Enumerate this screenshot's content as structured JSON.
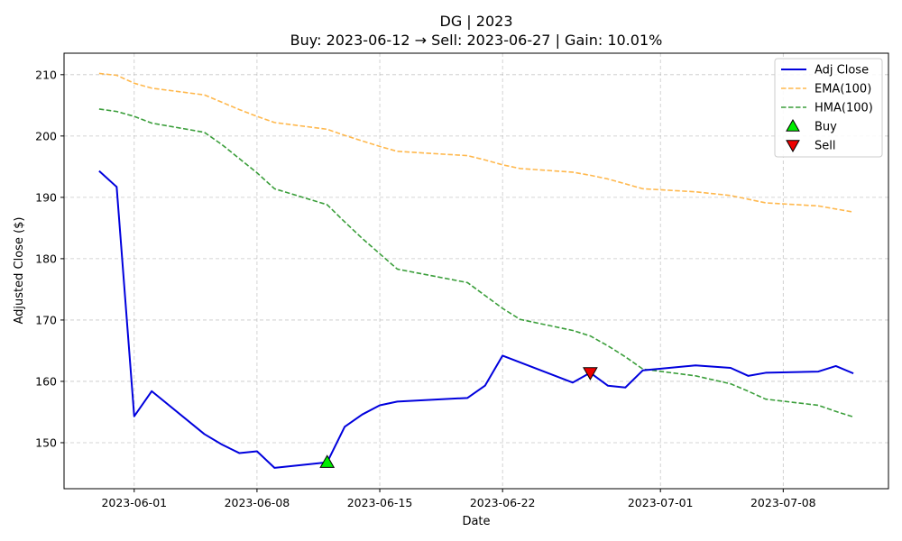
{
  "chart_data": {
    "type": "line",
    "title": "DG | 2023",
    "subtitle": "Buy: 2023-06-12  →  Sell: 2023-06-27  |  Gain: 10.01%",
    "xlabel": "Date",
    "ylabel": "Adjusted Close ($)",
    "xlim": [
      "2023-05-28",
      "2023-07-14"
    ],
    "ylim": [
      142.5,
      213.5
    ],
    "x_ticks": [
      "2023-06-01",
      "2023-06-08",
      "2023-06-15",
      "2023-06-22",
      "2023-07-01",
      "2023-07-08"
    ],
    "y_ticks": [
      150,
      160,
      170,
      180,
      190,
      200,
      210
    ],
    "grid": true,
    "legend_position": "top-right",
    "series": [
      {
        "name": "Adj Close",
        "color": "#0000dd",
        "style": "solid",
        "x": [
          "2023-05-30",
          "2023-05-31",
          "2023-06-01",
          "2023-06-02",
          "2023-06-05",
          "2023-06-06",
          "2023-06-07",
          "2023-06-08",
          "2023-06-09",
          "2023-06-12",
          "2023-06-13",
          "2023-06-14",
          "2023-06-15",
          "2023-06-16",
          "2023-06-20",
          "2023-06-21",
          "2023-06-22",
          "2023-06-26",
          "2023-06-27",
          "2023-06-28",
          "2023-06-29",
          "2023-06-30",
          "2023-07-03",
          "2023-07-05",
          "2023-07-06",
          "2023-07-07",
          "2023-07-10",
          "2023-07-11",
          "2023-07-12"
        ],
        "values": [
          194.3,
          191.7,
          154.3,
          158.4,
          151.4,
          149.7,
          148.3,
          148.6,
          145.9,
          146.8,
          152.6,
          154.6,
          156.1,
          156.7,
          157.3,
          159.3,
          164.2,
          159.8,
          161.4,
          159.3,
          159.0,
          161.8,
          162.6,
          162.2,
          160.9,
          161.4,
          161.6,
          162.5,
          161.3
        ]
      },
      {
        "name": "EMA(100)",
        "color": "#ffb84d",
        "style": "dashed",
        "x": [
          "2023-05-30",
          "2023-05-31",
          "2023-06-01",
          "2023-06-02",
          "2023-06-05",
          "2023-06-06",
          "2023-06-07",
          "2023-06-08",
          "2023-06-09",
          "2023-06-12",
          "2023-06-13",
          "2023-06-14",
          "2023-06-15",
          "2023-06-16",
          "2023-06-20",
          "2023-06-21",
          "2023-06-22",
          "2023-06-23",
          "2023-06-26",
          "2023-06-27",
          "2023-06-28",
          "2023-06-29",
          "2023-06-30",
          "2023-07-03",
          "2023-07-05",
          "2023-07-06",
          "2023-07-07",
          "2023-07-10",
          "2023-07-11",
          "2023-07-12"
        ],
        "values": [
          210.2,
          209.9,
          208.6,
          207.8,
          206.7,
          205.5,
          204.3,
          203.2,
          202.2,
          201.1,
          200.1,
          199.2,
          198.3,
          197.5,
          196.8,
          196.1,
          195.3,
          194.7,
          194.1,
          193.6,
          193.0,
          192.2,
          191.4,
          190.9,
          190.3,
          189.7,
          189.1,
          188.6,
          188.1,
          187.6
        ]
      },
      {
        "name": "HMA(100)",
        "color": "#3a9e3a",
        "style": "dashed",
        "x": [
          "2023-05-30",
          "2023-05-31",
          "2023-06-01",
          "2023-06-02",
          "2023-06-05",
          "2023-06-06",
          "2023-06-07",
          "2023-06-08",
          "2023-06-09",
          "2023-06-12",
          "2023-06-13",
          "2023-06-14",
          "2023-06-15",
          "2023-06-16",
          "2023-06-20",
          "2023-06-21",
          "2023-06-22",
          "2023-06-23",
          "2023-06-26",
          "2023-06-27",
          "2023-06-28",
          "2023-06-29",
          "2023-06-30",
          "2023-07-03",
          "2023-07-05",
          "2023-07-06",
          "2023-07-07",
          "2023-07-10",
          "2023-07-11",
          "2023-07-12"
        ],
        "values": [
          204.4,
          204.0,
          203.2,
          202.1,
          200.6,
          198.6,
          196.3,
          194.0,
          191.4,
          188.8,
          186.0,
          183.3,
          180.8,
          178.3,
          176.1,
          174.0,
          171.9,
          170.1,
          168.3,
          167.4,
          165.8,
          164.0,
          162.0,
          160.9,
          159.6,
          158.4,
          157.1,
          156.1,
          155.1,
          154.2
        ]
      }
    ],
    "markers": [
      {
        "name": "Buy",
        "x": "2023-06-12",
        "y": 146.8,
        "shape": "triangle-up",
        "color": "#00ee00"
      },
      {
        "name": "Sell",
        "x": "2023-06-27",
        "y": 161.4,
        "shape": "triangle-down",
        "color": "#ee0000"
      }
    ]
  }
}
